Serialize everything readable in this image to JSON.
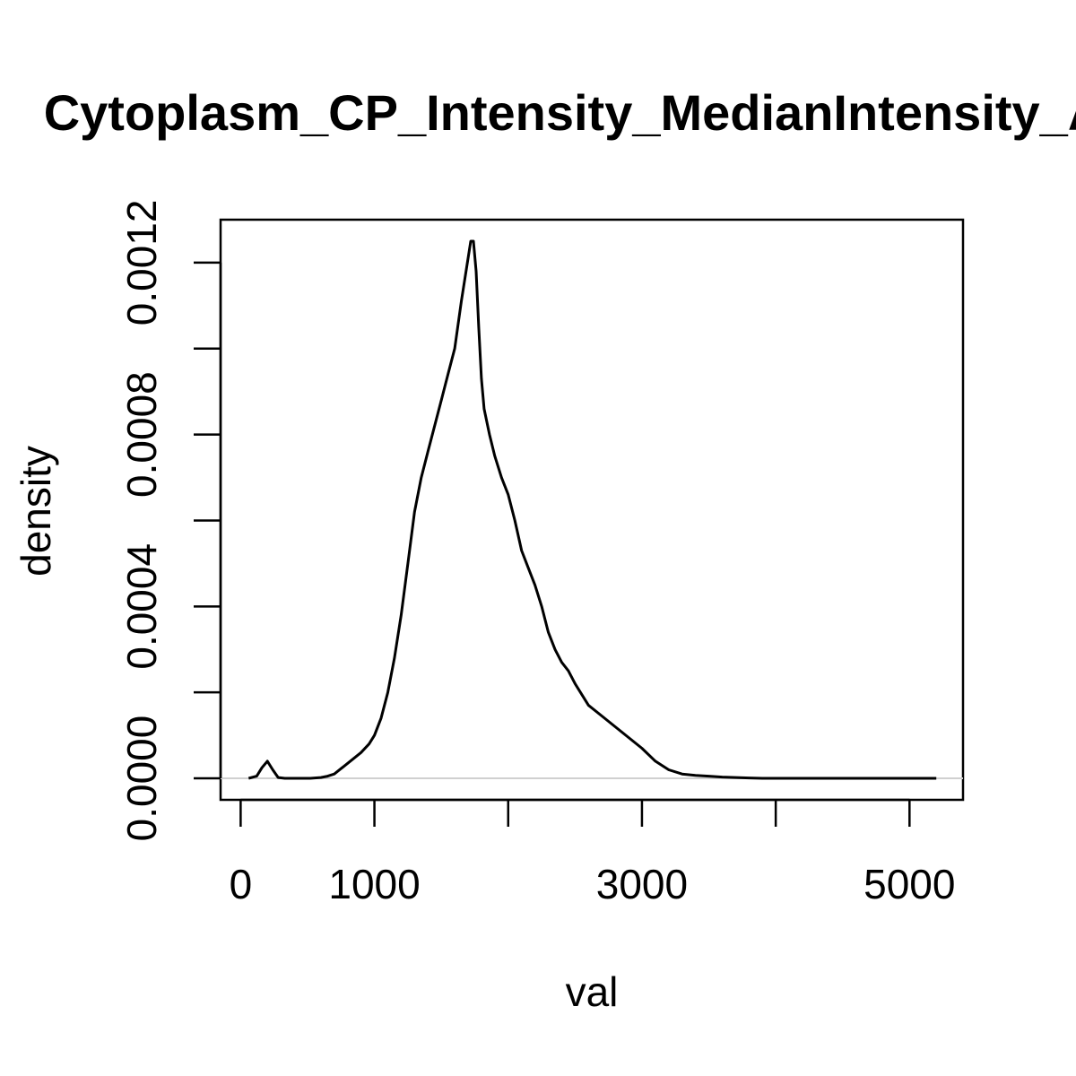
{
  "chart_data": {
    "type": "line",
    "title": "Cytoplasm_CP_Intensity_MedianIntensity_A",
    "xlabel": "val",
    "ylabel": "density",
    "xlim": [
      -150,
      5400
    ],
    "ylim": [
      -5e-05,
      0.0013
    ],
    "x_ticks": [
      0,
      1000,
      2000,
      3000,
      4000,
      5000
    ],
    "x_tick_labels": [
      "0",
      "1000",
      "",
      "3000",
      "",
      "5000"
    ],
    "y_ticks": [
      0.0,
      0.0002,
      0.0004,
      0.0006,
      0.0008,
      0.001,
      0.0012
    ],
    "y_tick_labels": [
      "0.0000",
      "",
      "0.0004",
      "",
      "0.0008",
      "",
      "0.0012"
    ],
    "baseline": {
      "y": 0,
      "color": "#d0d0d0"
    },
    "series": [
      {
        "color": "#000000",
        "x": [
          60,
          120,
          160,
          200,
          240,
          280,
          330,
          380,
          450,
          520,
          600,
          650,
          700,
          800,
          900,
          960,
          1000,
          1050,
          1100,
          1150,
          1200,
          1250,
          1300,
          1350,
          1400,
          1450,
          1500,
          1550,
          1600,
          1650,
          1700,
          1720,
          1740,
          1760,
          1780,
          1800,
          1820,
          1840,
          1860,
          1900,
          1950,
          2000,
          2050,
          2100,
          2150,
          2200,
          2250,
          2300,
          2350,
          2400,
          2450,
          2500,
          2600,
          2700,
          2800,
          2900,
          3000,
          3100,
          3200,
          3300,
          3400,
          3500,
          3600,
          3700,
          3800,
          3900,
          4000,
          4200,
          4500,
          4800,
          5000,
          5200
        ],
        "y": [
          0.0,
          5e-06,
          2.5e-05,
          4e-05,
          2e-05,
          2e-06,
          0.0,
          0.0,
          0.0,
          0.0,
          2e-06,
          5e-06,
          1e-05,
          3.5e-05,
          6e-05,
          8e-05,
          0.0001,
          0.00014,
          0.0002,
          0.00028,
          0.00038,
          0.0005,
          0.00062,
          0.0007,
          0.00076,
          0.00082,
          0.00088,
          0.00094,
          0.001,
          0.00111,
          0.00121,
          0.00125,
          0.00125,
          0.00118,
          0.00105,
          0.00093,
          0.00086,
          0.00083,
          0.0008,
          0.00075,
          0.0007,
          0.00066,
          0.0006,
          0.00053,
          0.00049,
          0.00045,
          0.0004,
          0.00034,
          0.0003,
          0.00027,
          0.00025,
          0.00022,
          0.00017,
          0.000145,
          0.00012,
          9.5e-05,
          7e-05,
          4e-05,
          2e-05,
          1e-05,
          7e-06,
          5e-06,
          3e-06,
          2e-06,
          1e-06,
          0.0,
          0.0,
          0.0,
          0.0,
          0.0,
          0.0,
          0.0
        ]
      }
    ]
  }
}
